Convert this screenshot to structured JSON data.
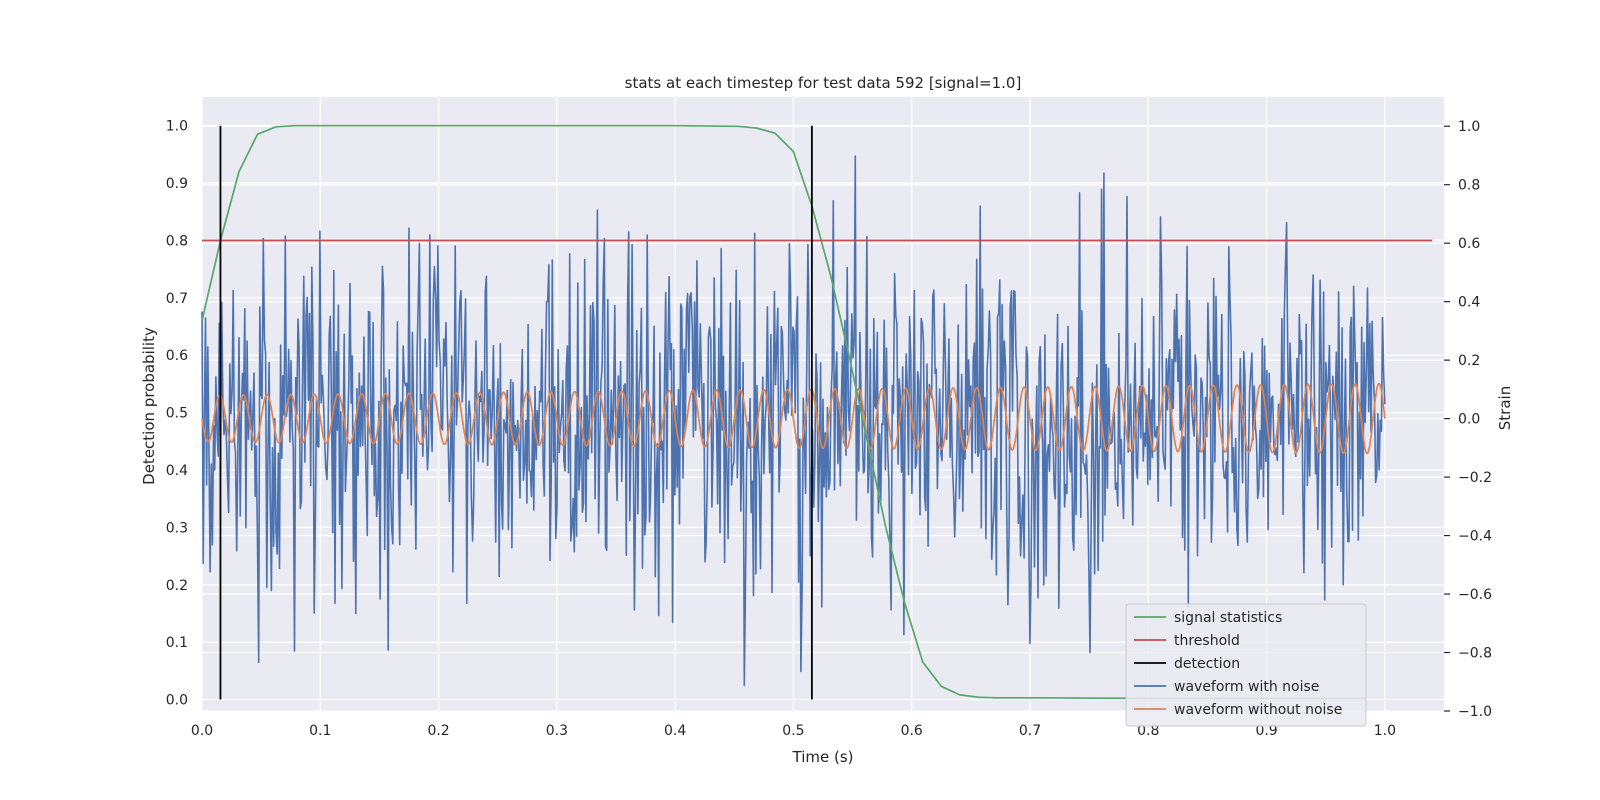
{
  "chart_data": {
    "type": "line",
    "title": "stats at each timestep for test data 592 [signal=1.0]",
    "xlabel": "Time (s)",
    "ylabel": "Detection probability",
    "ylabel_right": "Strain",
    "xlim": [
      0.0,
      1.05
    ],
    "ylim": [
      -0.02,
      1.05
    ],
    "ylim_right": [
      -1.0,
      1.1
    ],
    "x_ticks": [
      0.0,
      0.1,
      0.2,
      0.3,
      0.4,
      0.5,
      0.6,
      0.7,
      0.8,
      0.9,
      1.0
    ],
    "x_tick_labels": [
      "0.0",
      "0.1",
      "0.2",
      "0.3",
      "0.4",
      "0.5",
      "0.6",
      "0.7",
      "0.8",
      "0.9",
      "1.0"
    ],
    "y_ticks": [
      0.0,
      0.1,
      0.2,
      0.3,
      0.4,
      0.5,
      0.6,
      0.7,
      0.8,
      0.9,
      1.0
    ],
    "y_tick_labels": [
      "0.0",
      "0.1",
      "0.2",
      "0.3",
      "0.4",
      "0.5",
      "0.6",
      "0.7",
      "0.8",
      "0.9",
      "1.0"
    ],
    "y_right_ticks": [
      -1.0,
      -0.8,
      -0.6,
      -0.4,
      -0.2,
      0.0,
      0.2,
      0.4,
      0.6,
      0.8,
      1.0
    ],
    "y_right_tick_labels": [
      "−1.0",
      "−0.8",
      "−0.6",
      "−0.4",
      "−0.2",
      "0.0",
      "0.2",
      "0.4",
      "0.6",
      "0.8",
      "1.0"
    ],
    "grid": true,
    "legend_position": "lower-right",
    "series": [
      {
        "name": "signal statistics",
        "axis": "left",
        "color": "#55a868",
        "x": [
          0.0,
          0.0156,
          0.0313,
          0.0469,
          0.0625,
          0.0781,
          0.1,
          0.2,
          0.3,
          0.4,
          0.4531,
          0.4688,
          0.4844,
          0.5,
          0.5156,
          0.5313,
          0.5469,
          0.5625,
          0.5781,
          0.5938,
          0.6094,
          0.625,
          0.6406,
          0.6563,
          0.6719,
          0.7,
          0.8,
          0.9,
          0.9844
        ],
        "y": [
          0.66,
          0.8,
          0.92,
          0.985,
          0.998,
          1.0,
          1.0,
          1.0,
          1.0,
          1.0,
          0.999,
          0.996,
          0.987,
          0.955,
          0.86,
          0.74,
          0.6,
          0.45,
          0.3,
          0.17,
          0.065,
          0.023,
          0.008,
          0.004,
          0.003,
          0.003,
          0.002,
          0.002,
          0.002
        ]
      },
      {
        "name": "threshold",
        "axis": "left",
        "color": "#c44e52",
        "x": [
          0.0,
          1.04
        ],
        "y": [
          0.8,
          0.8
        ]
      },
      {
        "name": "detection",
        "axis": "left",
        "type": "vlines",
        "color": "#000000",
        "x": [
          0.0156,
          0.5156
        ],
        "y_range": [
          0.0,
          1.0
        ]
      },
      {
        "name": "waveform with noise",
        "axis": "right",
        "color": "#4c72b0",
        "type": "noise",
        "x_range": [
          0.0,
          1.0
        ],
        "n_points": 1024,
        "std": 0.3
      },
      {
        "name": "waveform without noise",
        "axis": "right",
        "color": "#dd8452",
        "type": "sine",
        "x_range": [
          0.0,
          1.0
        ],
        "frequency_hz": 50,
        "amplitude_start": 0.08,
        "amplitude_end": 0.12
      }
    ]
  }
}
